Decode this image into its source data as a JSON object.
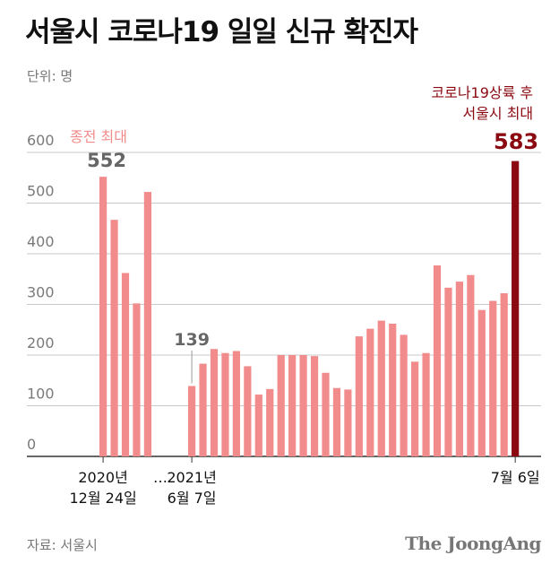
{
  "header": {
    "title": "서울시 코로나19 일일 신규 확진자",
    "unit": "단위: 명"
  },
  "footer": {
    "source": "자료: 서울시",
    "brand": "The JoongAng"
  },
  "colors": {
    "bar": "#f28b8b",
    "highlight": "#8b0a12",
    "grid": "#c8c8c8",
    "axis": "#333333"
  },
  "chart_data": {
    "type": "bar",
    "title": "서울시 코로나19 일일 신규 확진자",
    "ylabel": "단위: 명",
    "ylim": [
      0,
      600
    ],
    "yticks": [
      0,
      100,
      200,
      300,
      400,
      500,
      600
    ],
    "x_labels": [
      {
        "lines": [
          "2020년",
          "12월 24일"
        ]
      },
      {
        "lines": [
          "…"
        ]
      },
      {
        "lines": [
          "2021년",
          "6월 7일"
        ]
      },
      {
        "lines": [
          "7월 6일"
        ]
      }
    ],
    "series": [
      {
        "values": [
          552,
          467,
          362,
          302,
          522
        ]
      },
      {
        "values": [
          139,
          183,
          212,
          204,
          208,
          178,
          122,
          133,
          200,
          200,
          200,
          198,
          165,
          135,
          132,
          237,
          252,
          268,
          262,
          240,
          187,
          204,
          377,
          333,
          345,
          358,
          289,
          307,
          322,
          583
        ]
      }
    ],
    "annotations": [
      {
        "label": "종전 최대",
        "value": "552"
      },
      {
        "value": "139"
      },
      {
        "label_lines": [
          "코로나19상륙 후",
          "서울시 최대"
        ],
        "value": "583"
      }
    ]
  }
}
